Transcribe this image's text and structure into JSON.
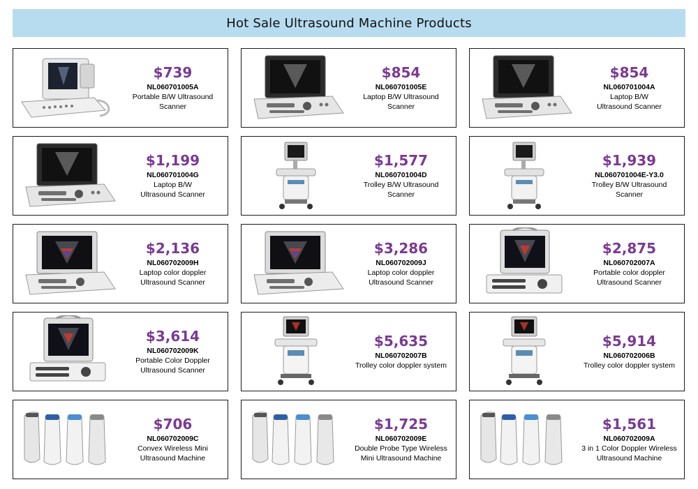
{
  "header": {
    "title": "Hot Sale Ultrasound Machine Products"
  },
  "colors": {
    "banner_bg": "#b7dcef",
    "price": "#7b3a93",
    "border": "#1a1a1a"
  },
  "products": [
    {
      "price": "$739",
      "code": "NL060701005A",
      "desc": "Portable B/W Ultrasound\nScanner",
      "icon": "portable-scanner-icon"
    },
    {
      "price": "$854",
      "code": "NL060701005E",
      "desc": "Laptop B/W Ultrasound\nScanner",
      "icon": "laptop-scanner-icon"
    },
    {
      "price": "$854",
      "code": "NL060701004A",
      "desc": "Laptop B/W\nUltrasound Scanner",
      "icon": "laptop-scanner-icon"
    },
    {
      "price": "$1,199",
      "code": "NL060701004G",
      "desc": "Laptop B/W\nUltrasound Scanner",
      "icon": "laptop-scanner-icon"
    },
    {
      "price": "$1,577",
      "code": "NL060701004D",
      "desc": "Trolley B/W Ultrasound Scanner",
      "icon": "trolley-scanner-icon"
    },
    {
      "price": "$1,939",
      "code": "NL060701004E-Y3.0",
      "desc": "Trolley B/W Ultrasound Scanner",
      "icon": "trolley-scanner-icon"
    },
    {
      "price": "$2,136",
      "code": "NL060702009H",
      "desc": "Laptop color doppler\nUltrasound Scanner",
      "icon": "laptop-doppler-icon"
    },
    {
      "price": "$3,286",
      "code": "NL060702009J",
      "desc": "Laptop color doppler\nUltrasound Scanner",
      "icon": "laptop-doppler-icon"
    },
    {
      "price": "$2,875",
      "code": "NL060702007A",
      "desc": "Portable color doppler\nUltrasound Scanner",
      "icon": "portable-doppler-icon"
    },
    {
      "price": "$3,614",
      "code": "NL060702009K",
      "desc": "Portable Color Doppler\nUltrasound Scanner",
      "icon": "portable-doppler-icon"
    },
    {
      "price": "$5,635",
      "code": "NL060702007B",
      "desc": "Trolley color doppler system",
      "icon": "trolley-doppler-icon"
    },
    {
      "price": "$5,914",
      "code": "NL060702006B",
      "desc": "Trolley color doppler system",
      "icon": "trolley-doppler-icon"
    },
    {
      "price": "$706",
      "code": "NL060702009C",
      "desc": "Convex Wireless Mini\nUltrasound Machine",
      "icon": "wireless-probe-icon"
    },
    {
      "price": "$1,725",
      "code": "NL060702009E",
      "desc": "Double Probe Type Wireless\nMini Ultrasound Machine",
      "icon": "wireless-probe-icon"
    },
    {
      "price": "$1,561",
      "code": "NL060702009A",
      "desc": "3 in 1 Color Doppler Wireless\nUltrasound Machine",
      "icon": "wireless-probe-icon"
    }
  ]
}
